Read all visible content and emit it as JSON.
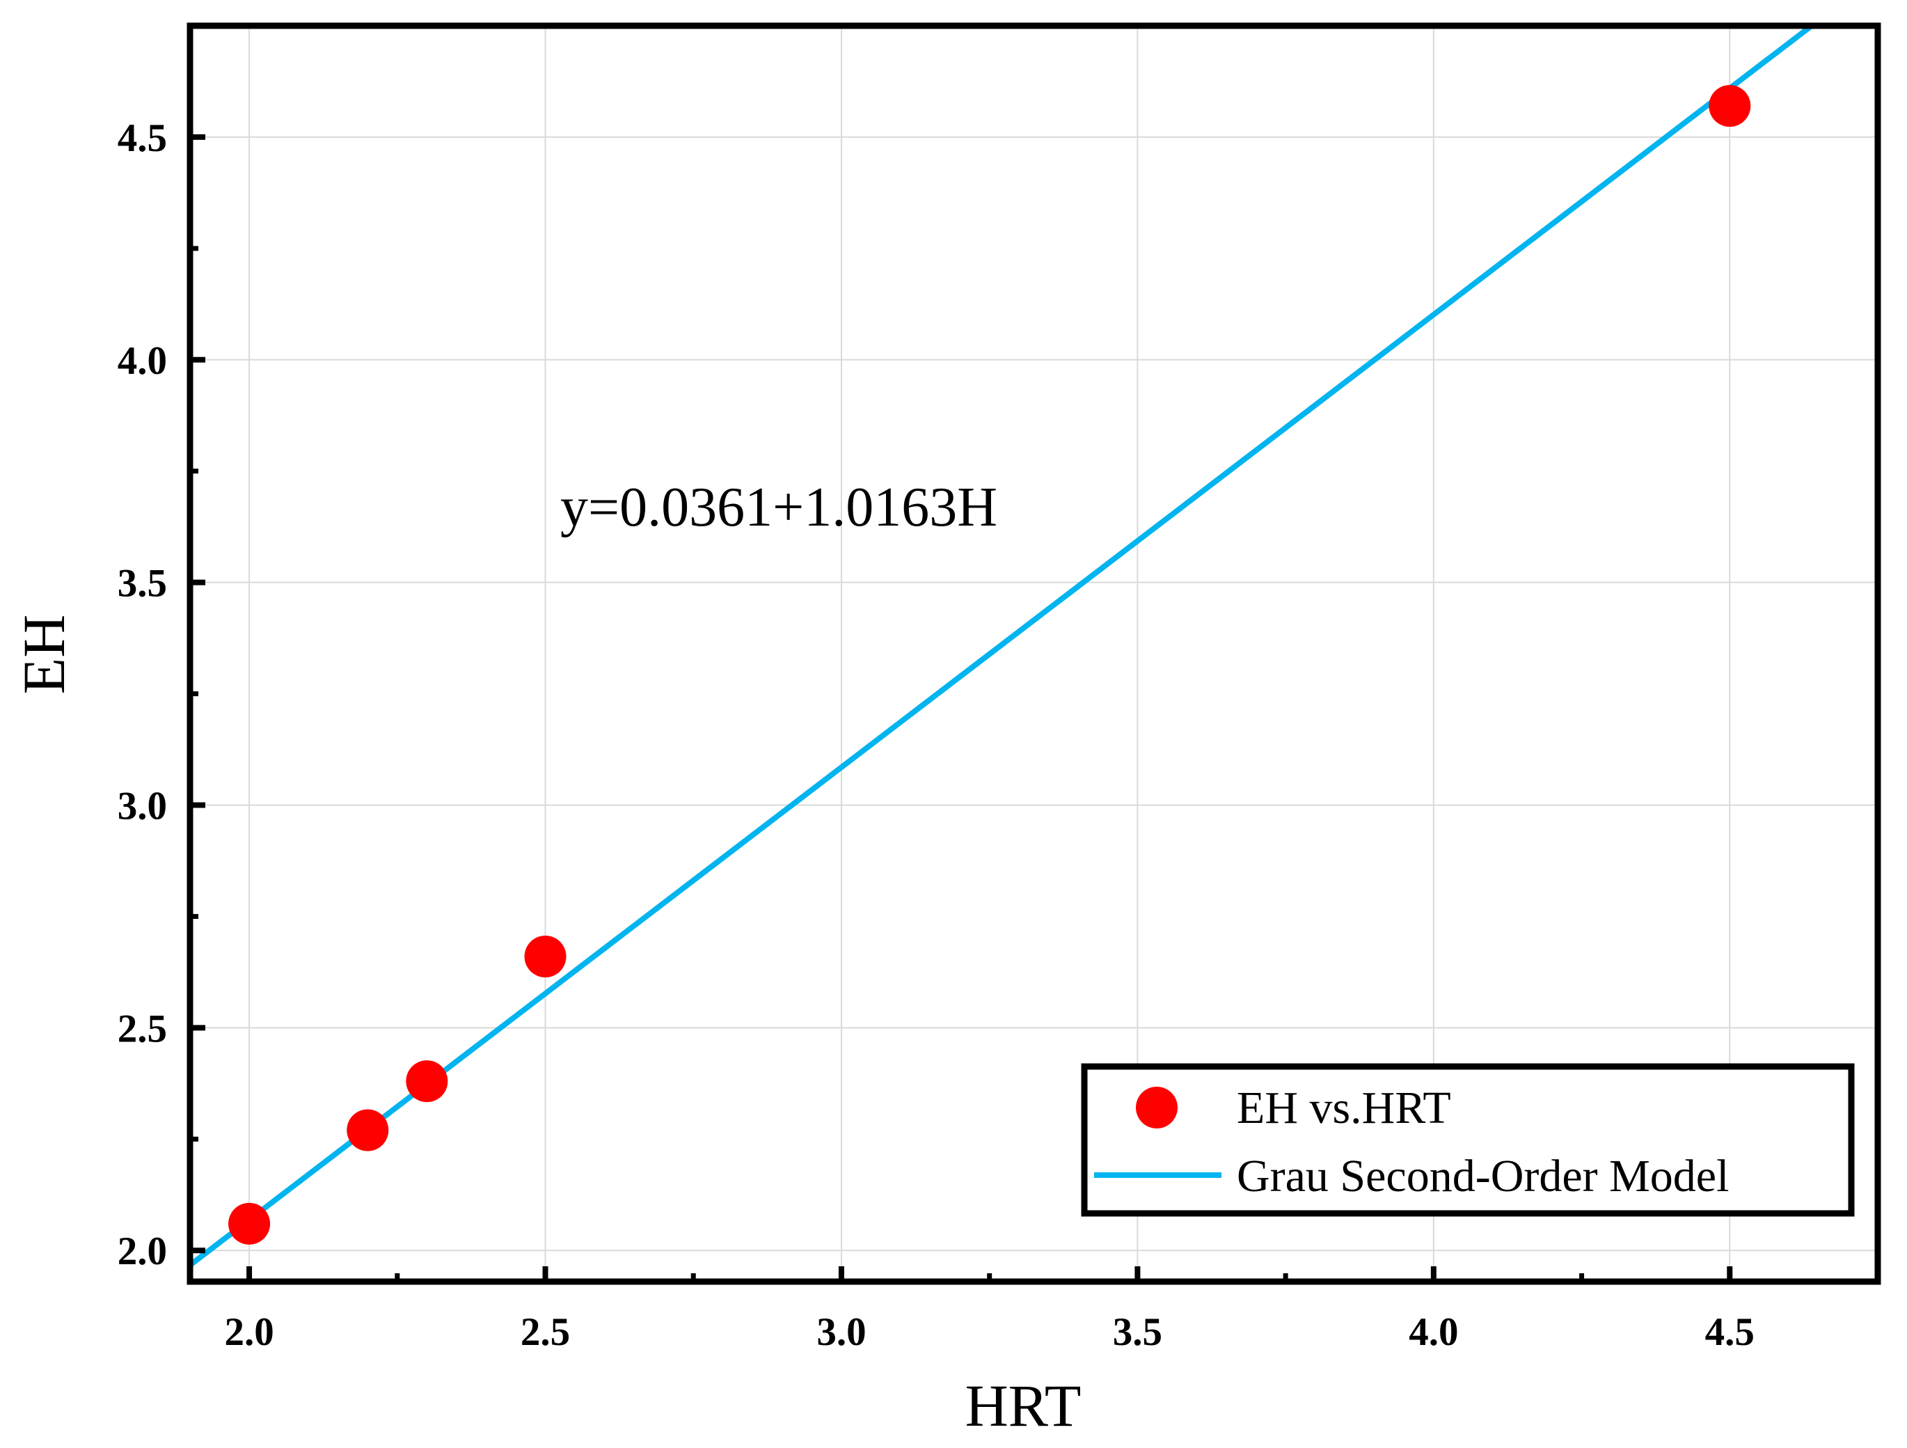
{
  "chart_data": {
    "type": "scatter",
    "xlabel": "HRT",
    "ylabel": "EH",
    "xlim": [
      1.9,
      4.75
    ],
    "ylim": [
      1.93,
      4.75
    ],
    "x_ticks": [
      2.0,
      2.5,
      3.0,
      3.5,
      4.0,
      4.5
    ],
    "x_tick_labels": [
      "2.0",
      "2.5",
      "3.0",
      "3.5",
      "4.0",
      "4.5"
    ],
    "x_minor_ticks": [
      2.25,
      2.75,
      3.25,
      3.75,
      4.25
    ],
    "y_ticks": [
      2.0,
      2.5,
      3.0,
      3.5,
      4.0,
      4.5
    ],
    "y_tick_labels": [
      "2.0",
      "2.5",
      "3.0",
      "3.5",
      "4.0",
      "4.5"
    ],
    "y_minor_ticks": [
      2.25,
      2.75,
      3.25,
      3.75,
      4.25
    ],
    "grid": true,
    "series": [
      {
        "name": "EH vs.HRT",
        "kind": "scatter",
        "color": "#ff0000",
        "x": [
          2.0,
          2.2,
          2.3,
          2.5,
          4.5
        ],
        "y": [
          2.06,
          2.27,
          2.38,
          2.66,
          4.57
        ]
      },
      {
        "name": "Grau Second-Order Model",
        "kind": "line",
        "color": "#00b4f0",
        "intercept": 0.0361,
        "slope": 1.0163
      }
    ],
    "annotation": "y=0.0361+1.0163H",
    "legend_position": "bottom-right"
  }
}
